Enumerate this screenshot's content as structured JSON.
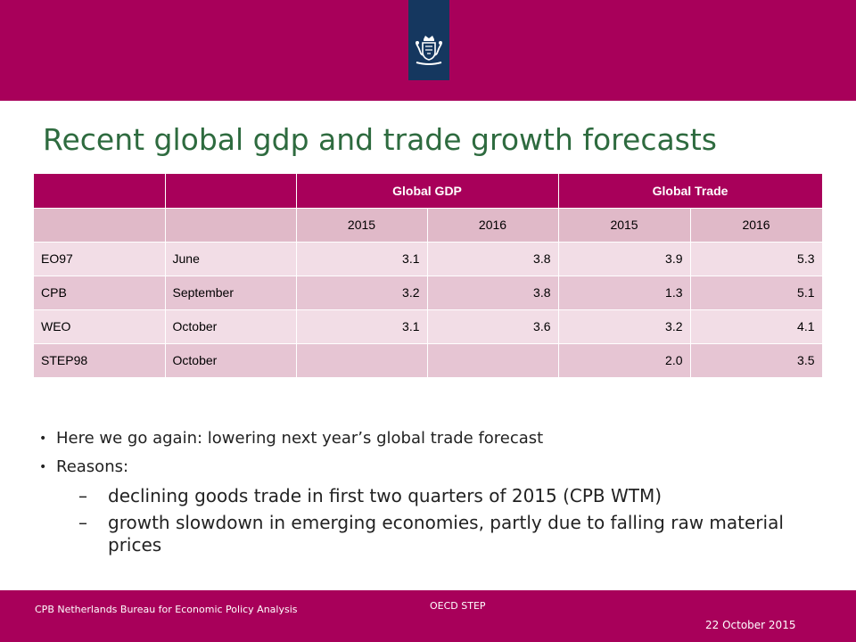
{
  "title": "Recent global gdp and trade growth forecasts",
  "table": {
    "header": [
      "",
      "",
      "Global GDP",
      "Global Trade"
    ],
    "years": [
      "",
      "",
      "2015",
      "2016",
      "2015",
      "2016"
    ],
    "rows": [
      [
        "EO97",
        "June",
        "3.1",
        "3.8",
        "3.9",
        "5.3"
      ],
      [
        "CPB",
        "September",
        "3.2",
        "3.8",
        "1.3",
        "5.1"
      ],
      [
        "WEO",
        "October",
        "3.1",
        "3.6",
        "3.2",
        "4.1"
      ],
      [
        "STEP98",
        "October",
        "",
        "",
        "2.0",
        "3.5"
      ]
    ]
  },
  "bullets": [
    {
      "text": "Here we go again: lowering next year’s global trade forecast",
      "subitems": []
    },
    {
      "text": "Reasons:",
      "subitems": [
        "declining goods trade in first two quarters of 2015 (CPB WTM)",
        "growth slowdown in emerging economies, partly due to falling raw material prices"
      ]
    }
  ],
  "bullet_marker": "•",
  "dash_marker": "–",
  "footer": {
    "left": "CPB Netherlands Bureau for Economic Policy Analysis",
    "center": "OECD STEP",
    "date": "22 October 2015"
  },
  "icons": {
    "crest": "royal-coat-of-arms-icon"
  },
  "colors": {
    "brand": "#a8005a",
    "ribbon": "#15375f",
    "title": "#2e6b3f"
  }
}
